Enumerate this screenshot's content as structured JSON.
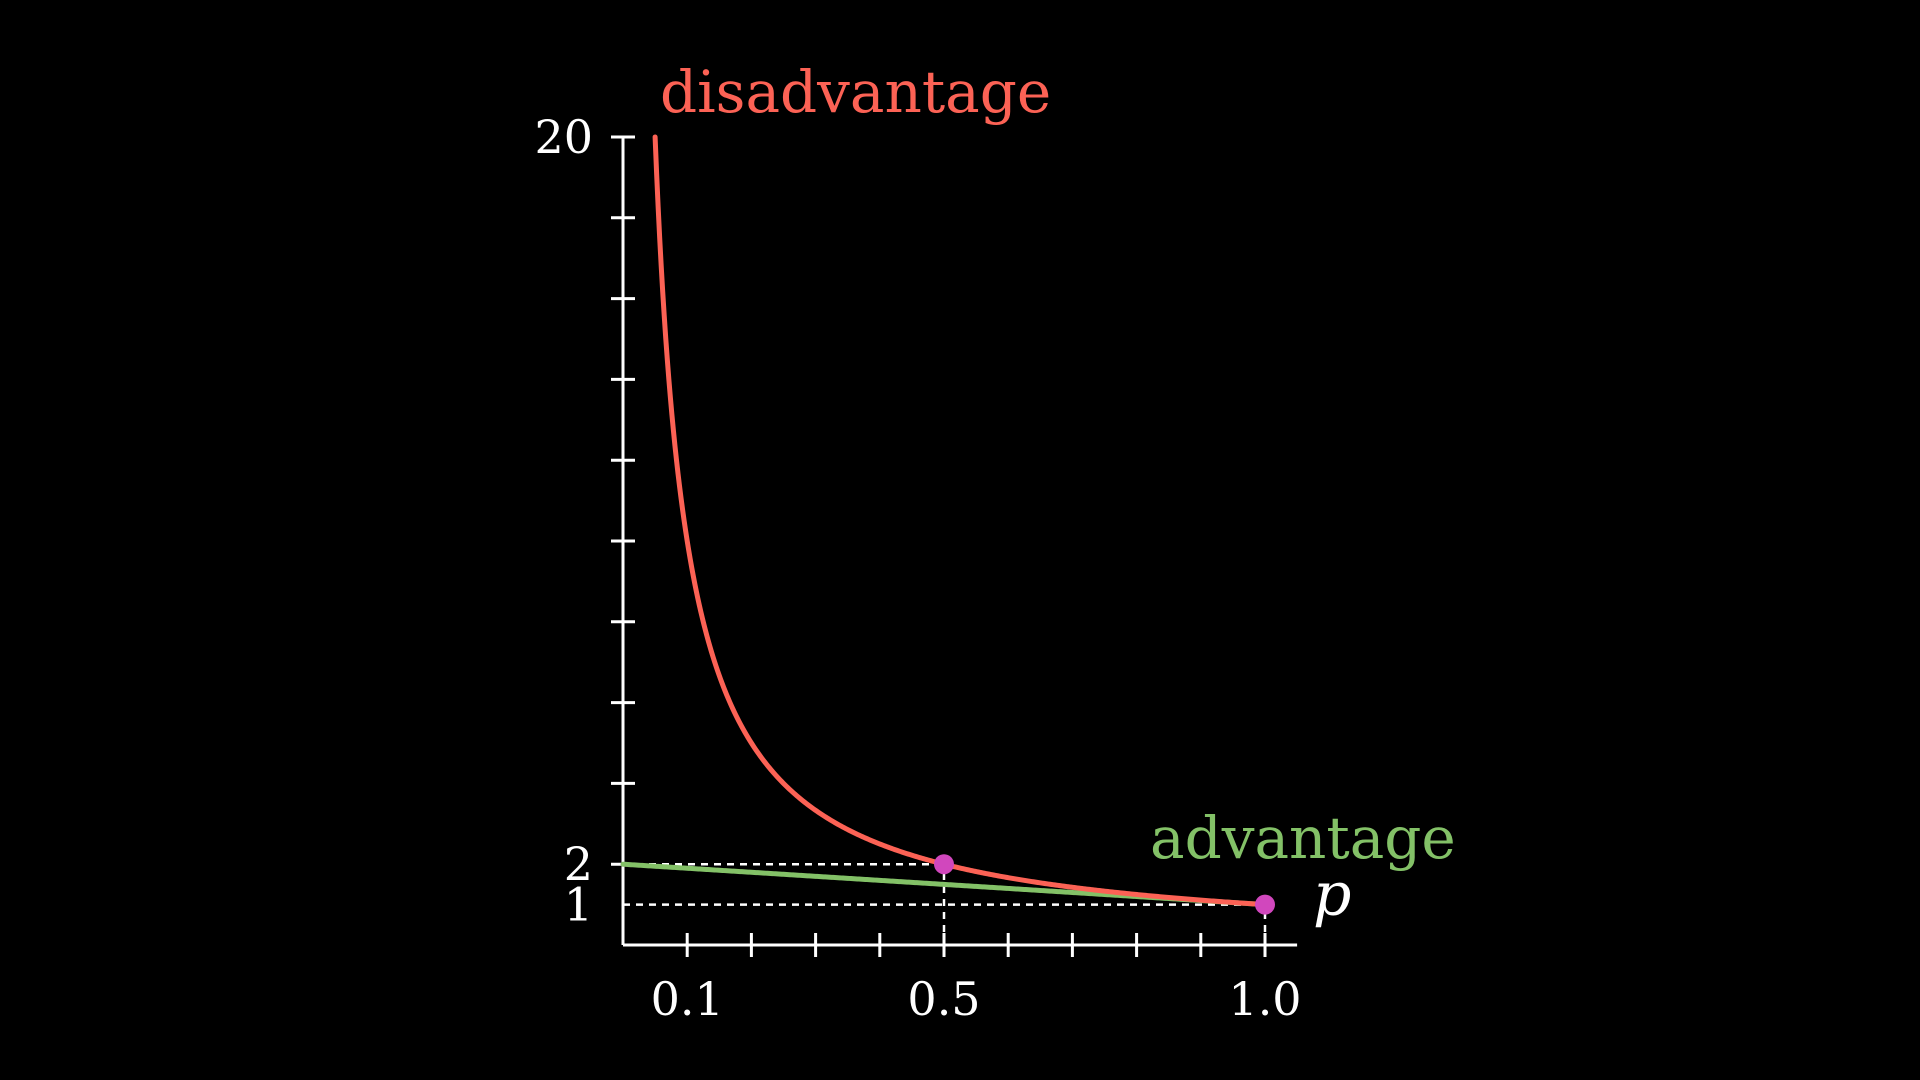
{
  "chart_data": {
    "type": "line",
    "x_range": [
      0,
      1.05
    ],
    "y_range": [
      0,
      20
    ],
    "x_tick_values": [
      0.1,
      0.2,
      0.3,
      0.4,
      0.5,
      0.6,
      0.7,
      0.8,
      0.9,
      1.0
    ],
    "x_tick_labels": [
      {
        "value": 0.1,
        "label": "0.1"
      },
      {
        "value": 0.5,
        "label": "0.5"
      },
      {
        "value": 1.0,
        "label": "1.0"
      }
    ],
    "y_tick_values": [
      2,
      4,
      6,
      8,
      10,
      12,
      14,
      16,
      18,
      20
    ],
    "y_tick_labels": [
      {
        "value": 1,
        "label": "1"
      },
      {
        "value": 2,
        "label": "2"
      },
      {
        "value": 20,
        "label": "20"
      }
    ],
    "x_axis_variable": "p",
    "series": [
      {
        "name": "disadvantage",
        "color": "#fc6255",
        "formula": "1/p",
        "x_domain": [
          0.05,
          1.0
        ]
      },
      {
        "name": "advantage",
        "color": "#83c167",
        "formula": "2-p",
        "x_domain": [
          0.0,
          1.0
        ]
      }
    ],
    "highlight_points": [
      {
        "x": 0.5,
        "y": 2
      },
      {
        "x": 1.0,
        "y": 1
      }
    ],
    "highlight_color": "#d147bd",
    "guide_lines": [
      {
        "type": "horizontal",
        "y": 2,
        "x_to": 0.5
      },
      {
        "type": "vertical",
        "x": 0.5,
        "y_to": 2
      },
      {
        "type": "horizontal",
        "y": 1,
        "x_to": 1.0
      },
      {
        "type": "vertical",
        "x": 1.0,
        "y_to": 1
      }
    ],
    "grid": false,
    "axis_color": "#ffffff"
  }
}
